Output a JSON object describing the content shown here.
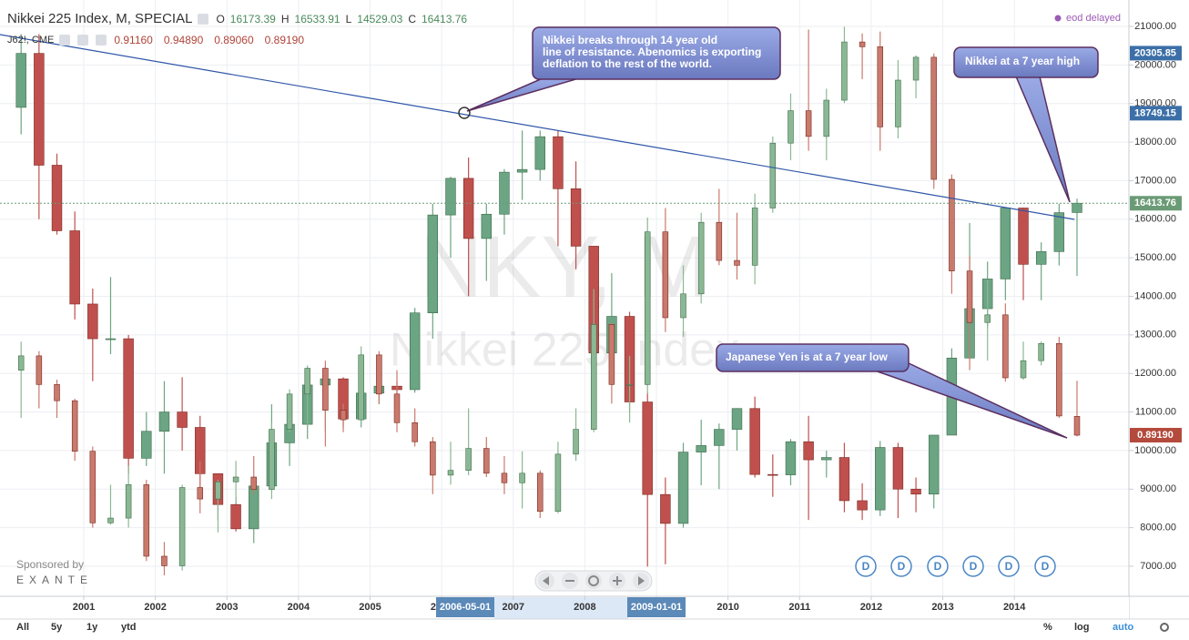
{
  "chart_data": {
    "type": "candlestick",
    "x": [
      2000.125,
      2000.375,
      2000.625,
      2000.875,
      2001.125,
      2001.375,
      2001.625,
      2001.875,
      2002.125,
      2002.375,
      2002.625,
      2002.875,
      2003.125,
      2003.375,
      2003.625,
      2003.875,
      2004.125,
      2004.375,
      2004.625,
      2004.875,
      2005.125,
      2005.375,
      2005.625,
      2005.875,
      2006.125,
      2006.375,
      2006.625,
      2006.875,
      2007.125,
      2007.375,
      2007.625,
      2007.875,
      2008.125,
      2008.375,
      2008.625,
      2008.875,
      2009.125,
      2009.375,
      2009.625,
      2009.875,
      2010.125,
      2010.375,
      2010.625,
      2010.875,
      2011.125,
      2011.375,
      2011.625,
      2011.875,
      2012.125,
      2012.375,
      2012.625,
      2012.875,
      2013.125,
      2013.375,
      2013.625,
      2013.875,
      2014.125,
      2014.375,
      2014.625,
      2014.875
    ],
    "series": [
      {
        "name": "Nikkei 225 Index, M, SPECIAL",
        "up_color": "#6ba583",
        "down_color": "#c0504d",
        "open": [
          18900,
          20300,
          17400,
          15700,
          13800,
          12900,
          12900,
          9800,
          10500,
          11000,
          10600,
          9400,
          8600,
          7970,
          9080,
          10200,
          10680,
          11700,
          11860,
          10820,
          11490,
          11670,
          11580,
          13570,
          16110,
          17060,
          15500,
          16130,
          17220,
          17290,
          18140,
          16790,
          15300,
          12530,
          13480,
          11260,
          8860,
          8110,
          9960,
          10130,
          10550,
          11090,
          9380,
          9370,
          10230,
          9760,
          9820,
          8700,
          8460,
          10080,
          9000,
          8870,
          10400,
          12400,
          13680,
          14450,
          16290,
          14830,
          15160,
          16173.39
        ],
        "high": [
          20800,
          20800,
          17700,
          16200,
          14200,
          14500,
          13000,
          11000,
          11800,
          11900,
          10900,
          9400,
          8800,
          9200,
          11200,
          11200,
          11800,
          12200,
          11900,
          11500,
          12000,
          11800,
          13700,
          16400,
          17100,
          17600,
          16400,
          17300,
          18300,
          18300,
          18300,
          17500,
          15300,
          14600,
          13600,
          11500,
          9300,
          10200,
          10800,
          10700,
          11100,
          11400,
          9900,
          10300,
          10900,
          10000,
          10200,
          9150,
          10250,
          10200,
          9300,
          10400,
          12650,
          15900,
          14900,
          16300,
          16300,
          15400,
          16400,
          16533.91
        ],
        "low": [
          18200,
          16000,
          15600,
          13400,
          11800,
          12500,
          9400,
          9600,
          9400,
          10000,
          9000,
          8200,
          7900,
          7600,
          9000,
          9600,
          10300,
          10500,
          10600,
          10600,
          11200,
          10800,
          11500,
          12900,
          15000,
          14000,
          14400,
          15600,
          16500,
          17000,
          15300,
          14700,
          11700,
          12400,
          11000,
          6990,
          7050,
          8000,
          9100,
          9000,
          10000,
          9300,
          8800,
          9100,
          8200,
          9300,
          8400,
          8200,
          8300,
          8250,
          8400,
          8500,
          10400,
          12400,
          13200,
          13900,
          13900,
          13900,
          14800,
          14529.03
        ],
        "close": [
          20300,
          17400,
          15700,
          13800,
          12900,
          12900,
          9800,
          10500,
          11000,
          10600,
          9400,
          8600,
          7970,
          9080,
          10200,
          10680,
          11700,
          11860,
          10820,
          11490,
          11670,
          11580,
          13570,
          16110,
          17060,
          15500,
          16130,
          17220,
          17290,
          18140,
          16790,
          15300,
          12530,
          13480,
          11260,
          8860,
          8110,
          9960,
          10130,
          10550,
          11090,
          9380,
          9370,
          10230,
          9760,
          9820,
          8700,
          8460,
          10080,
          9000,
          8870,
          10400,
          12400,
          13680,
          14450,
          16290,
          14830,
          15160,
          16170,
          16413.76
        ],
        "badge_color": "#6b9b76"
      },
      {
        "name": "J62!, CME",
        "axis": "y2",
        "up_color": "#8bb894",
        "down_color": "#c97a6d",
        "open": [
          0.96,
          0.975,
          0.945,
          0.928,
          0.875,
          0.8,
          0.805,
          0.84,
          0.765,
          0.755,
          0.837,
          0.825,
          0.843,
          0.848,
          0.835,
          0.898,
          0.935,
          0.962,
          0.918,
          0.908,
          0.976,
          0.935,
          0.905,
          0.885,
          0.85,
          0.855,
          0.878,
          0.852,
          0.842,
          0.852,
          0.812,
          0.872,
          0.898,
          1.008,
          0.945,
          0.945,
          1.105,
          1.015,
          1.04,
          1.115,
          1.075,
          1.07,
          1.13,
          1.198,
          1.232,
          1.205,
          1.243,
          1.304,
          1.299,
          1.215,
          1.264,
          1.288,
          1.16,
          1.064,
          1.01,
          1.018,
          0.952,
          0.97,
          0.988,
          0.9116
        ],
        "high": [
          0.99,
          0.98,
          0.95,
          0.93,
          0.88,
          0.84,
          0.86,
          0.845,
          0.78,
          0.84,
          0.865,
          0.845,
          0.865,
          0.87,
          0.905,
          0.94,
          0.965,
          0.97,
          0.925,
          0.985,
          0.98,
          0.96,
          0.92,
          0.89,
          0.885,
          0.92,
          0.89,
          0.87,
          0.875,
          0.855,
          0.885,
          0.92,
          1.045,
          1.01,
          0.975,
          1.12,
          1.13,
          1.07,
          1.125,
          1.15,
          1.125,
          1.145,
          1.205,
          1.25,
          1.317,
          1.255,
          1.32,
          1.313,
          1.315,
          1.285,
          1.29,
          1.292,
          1.165,
          1.08,
          1.055,
          1.03,
          0.99,
          0.99,
          0.995,
          0.9489
        ],
        "low": [
          0.91,
          0.92,
          0.91,
          0.865,
          0.795,
          0.798,
          0.795,
          0.76,
          0.745,
          0.75,
          0.81,
          0.79,
          0.82,
          0.83,
          0.825,
          0.895,
          0.9,
          0.88,
          0.895,
          0.905,
          0.925,
          0.895,
          0.88,
          0.83,
          0.84,
          0.85,
          0.848,
          0.83,
          0.815,
          0.805,
          0.81,
          0.865,
          0.895,
          0.925,
          0.905,
          0.935,
          1.0,
          0.995,
          1.03,
          1.07,
          1.055,
          1.05,
          1.125,
          1.18,
          1.19,
          1.18,
          1.24,
          1.265,
          1.19,
          1.203,
          1.245,
          1.15,
          1.04,
          0.96,
          0.97,
          0.948,
          0.95,
          0.965,
          0.91,
          0.8906
        ],
        "close": [
          0.975,
          0.945,
          0.928,
          0.875,
          0.8,
          0.805,
          0.84,
          0.765,
          0.755,
          0.837,
          0.825,
          0.843,
          0.848,
          0.835,
          0.898,
          0.935,
          0.962,
          0.918,
          0.908,
          0.976,
          0.935,
          0.905,
          0.885,
          0.85,
          0.855,
          0.878,
          0.852,
          0.842,
          0.852,
          0.812,
          0.872,
          0.898,
          1.008,
          0.945,
          0.945,
          1.105,
          1.015,
          1.04,
          1.115,
          1.075,
          1.07,
          1.13,
          1.198,
          1.232,
          1.205,
          1.243,
          1.304,
          1.299,
          1.215,
          1.264,
          1.288,
          1.16,
          1.064,
          1.01,
          1.018,
          0.952,
          0.97,
          0.988,
          0.912,
          0.8919
        ],
        "ohlc_labels": {
          "open": "0.91160",
          "high": "0.94890",
          "low": "0.89060",
          "close": "0.89190"
        },
        "badge_color": "#b44a3c"
      }
    ],
    "ohlc_letters": [
      "O",
      "H",
      "L",
      "C"
    ],
    "xlim": [
      1999.83,
      2015.6
    ],
    "xticks": [
      2001,
      2002,
      2003,
      2004,
      2005,
      2006,
      2007,
      2008,
      2009,
      2010,
      2011,
      2012,
      2013,
      2014
    ],
    "x_markers": [
      "2006-05-01",
      "2009-01-01"
    ],
    "ylim": [
      6220,
      21685
    ],
    "yticks": [
      {
        "value": 7000,
        "label": "7000.00"
      },
      {
        "value": 8000,
        "label": "8000.00"
      },
      {
        "value": 9000,
        "label": "9000.00"
      },
      {
        "value": 10000,
        "label": "10000.00"
      },
      {
        "value": 11000,
        "label": "11000.00"
      },
      {
        "value": 12000,
        "label": "12000.00"
      },
      {
        "value": 13000,
        "label": "13000.00"
      },
      {
        "value": 14000,
        "label": "14000.00"
      },
      {
        "value": 15000,
        "label": "15000.00"
      },
      {
        "value": 16000,
        "label": "16000.00"
      },
      {
        "value": 17000,
        "label": "17000.00"
      },
      {
        "value": 18000,
        "label": "18000.00"
      },
      {
        "value": 19000,
        "label": "19000.00"
      },
      {
        "value": 20000,
        "label": "20000.00"
      },
      {
        "value": 21000,
        "label": "21000.00"
      }
    ],
    "y2lim": [
      0.723,
      1.348
    ],
    "grid": true,
    "price_badges": [
      20305.85,
      18749.15
    ],
    "trendline": {
      "x": [
        1999.83,
        2014.84
      ],
      "y": [
        20788,
        15995
      ],
      "color": "#2f56a8"
    },
    "watermark": {
      "symbol": "NKY, M",
      "name": "Nikkei 225 Index"
    },
    "annotations": [
      {
        "lines": [
          "Nikkei breaks through 14 year old",
          "line of resistance. Abenomics is exporting",
          "deflation to the rest of the world."
        ]
      },
      {
        "lines": [
          "Nikkei at a 7 year high"
        ]
      },
      {
        "lines": [
          "Japanese Yen is at a 7 year low"
        ]
      }
    ],
    "dividend_markers": [
      "D",
      "D",
      "D",
      "D",
      "D",
      "D"
    ],
    "status": "eod delayed",
    "sponsor": {
      "label": "Sponsored by",
      "name": "EXANTE"
    },
    "toolbar": {
      "ranges": [
        "All",
        "5y",
        "1y",
        "ytd"
      ],
      "options": [
        "%",
        "log",
        "auto"
      ]
    }
  }
}
